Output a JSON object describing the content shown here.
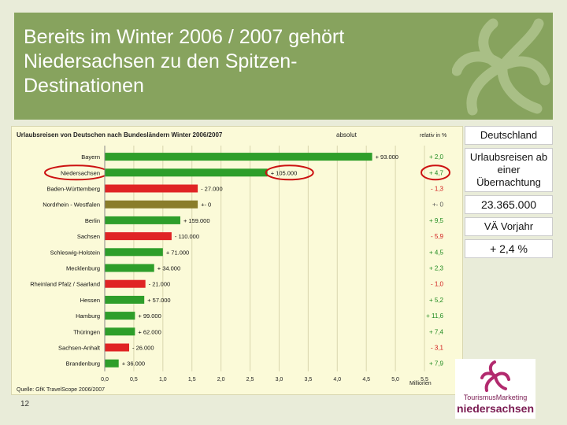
{
  "slide": {
    "title": "Bereits im Winter 2006 / 2007 gehört\nNiedersachsen zu den Spitzen-\nDestinationen",
    "slide_number": "12"
  },
  "side_panel": {
    "heading": "Deutschland",
    "metric": "Urlaubsreisen ab einer Übernachtung",
    "total": "23.365.000",
    "comparison_label": "VÄ Vorjahr",
    "comparison_value": "+ 2,4 %"
  },
  "logo": {
    "line1": "TourismusMarketing",
    "line2": "niedersachsen"
  },
  "chart_data": {
    "type": "bar",
    "orientation": "horizontal",
    "title": "Urlaubsreisen von Deutschen nach Bundesländern Winter 2006/2007",
    "col_absolut": "absolut",
    "col_relativ": "relativ in %",
    "xlabel": "Millionen",
    "source": "Quelle: GfK TravelScope 2006/2007",
    "xlim": [
      0,
      5.5
    ],
    "xticks": [
      "0,0",
      "0,5",
      "1,0",
      "1,5",
      "2,0",
      "2,5",
      "3,0",
      "3,5",
      "4,0",
      "4,5",
      "5,0",
      "5,5"
    ],
    "grid": true,
    "categories": [
      "Bayern",
      "Niedersachsen",
      "Baden-Württemberg",
      "Nordrhein - Westfalen",
      "Berlin",
      "Sachsen",
      "Schleswig-Holstein",
      "Mecklenburg",
      "Rheinland Pfalz / Saarland",
      "Hessen",
      "Hamburg",
      "Thüringen",
      "Sachsen-Anhalt",
      "Brandenburg"
    ],
    "values": [
      4.6,
      2.8,
      1.6,
      1.6,
      1.3,
      1.15,
      1.0,
      0.85,
      0.7,
      0.68,
      0.52,
      0.52,
      0.42,
      0.24
    ],
    "changes_abs": [
      "+ 93.000",
      "+ 105.000",
      "- 27.000",
      "+- 0",
      "+ 159.000",
      "- 110.000",
      "+ 71.000",
      "+ 34.000",
      "- 21.000",
      "+ 57.000",
      "+ 99.000",
      "+ 62.000",
      "- 26.000",
      "+ 36.000"
    ],
    "changes_rel": [
      "+ 2,0",
      "+ 4,7",
      "- 1,3",
      "+- 0",
      "+ 9,5",
      "- 5,9",
      "+ 4,5",
      "+ 2,3",
      "- 1,0",
      "+ 5,2",
      "+ 11,6",
      "+ 7,4",
      "- 3,1",
      "+ 7,9"
    ],
    "direction": [
      "up",
      "up",
      "down",
      "flat",
      "up",
      "down",
      "up",
      "up",
      "down",
      "up",
      "up",
      "up",
      "down",
      "up"
    ],
    "highlight": [
      "Niedersachsen"
    ],
    "colors": {
      "up": "#2e9e2a",
      "down": "#e02424",
      "flat": "#8a7d2a",
      "highlight_ring": "#cc1111",
      "pos_text": "#1f8a1f",
      "neg_text": "#d01818"
    }
  }
}
